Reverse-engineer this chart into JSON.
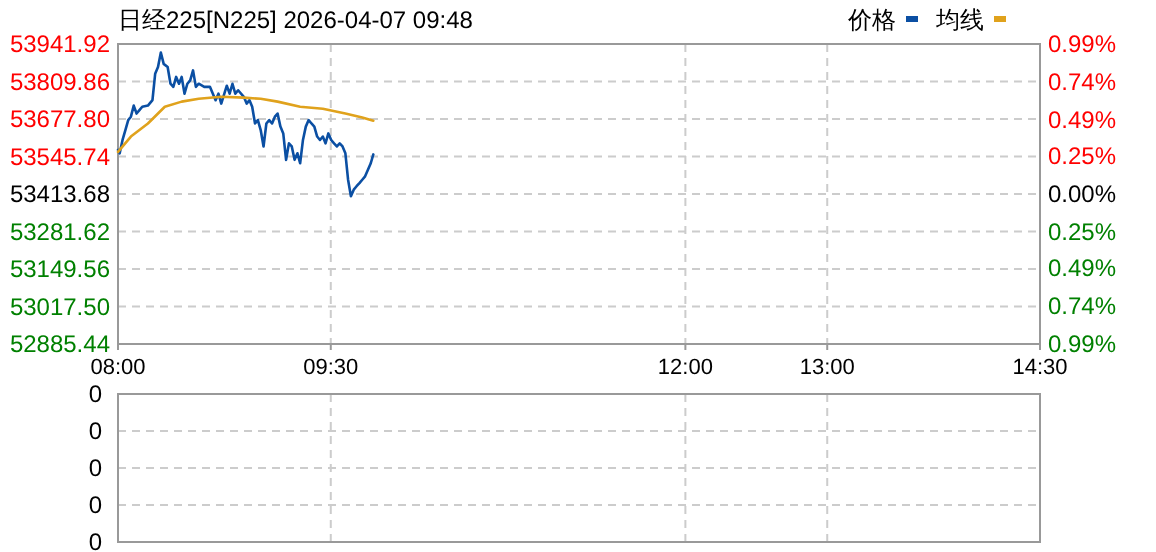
{
  "chart_data": [
    {
      "type": "line",
      "title": "日经225[N225] 2026-04-07 09:48",
      "legend": "top right",
      "grid": true,
      "xlim": [
        8,
        14.5
      ],
      "xticks": [
        {
          "value": 8,
          "label": "08:00"
        },
        {
          "value": 9.5,
          "label": "09:30"
        },
        {
          "value": 12,
          "label": "12:00"
        },
        {
          "value": 13,
          "label": "13:00"
        },
        {
          "value": 14.5,
          "label": "14:30"
        }
      ],
      "ylim": [
        52885.44,
        53941.92
      ],
      "yticks": [
        {
          "value": 52885.44,
          "label": "52885.44"
        },
        {
          "value": 53017.5,
          "label": "53017.50"
        },
        {
          "value": 53149.56,
          "label": "53149.56"
        },
        {
          "value": 53281.62,
          "label": "53281.62"
        },
        {
          "value": 53413.68,
          "label": "53413.68"
        },
        {
          "value": 53545.74,
          "label": "53545.74"
        },
        {
          "value": 53677.8,
          "label": "53677.80"
        },
        {
          "value": 53809.86,
          "label": "53809.86"
        },
        {
          "value": 53941.92,
          "label": "53941.92"
        }
      ],
      "y2lim": [
        -0.99,
        0.99
      ],
      "y2ticks": [
        {
          "value": -0.99,
          "label": "0.99%"
        },
        {
          "value": -0.74,
          "label": "0.74%"
        },
        {
          "value": -0.49,
          "label": "0.49%"
        },
        {
          "value": -0.25,
          "label": "0.25%"
        },
        {
          "value": 0,
          "label": "0.00%"
        },
        {
          "value": 0.25,
          "label": "0.25%"
        },
        {
          "value": 0.49,
          "label": "0.49%"
        },
        {
          "value": 0.74,
          "label": "0.74%"
        },
        {
          "value": 0.99,
          "label": "0.99%"
        }
      ],
      "series": [
        {
          "name": "价格",
          "color": "#0b4fa3",
          "x": [
            8.0,
            8.012,
            8.032,
            8.052,
            8.072,
            8.091,
            8.111,
            8.131,
            8.151,
            8.171,
            8.211,
            8.243,
            8.262,
            8.282,
            8.302,
            8.322,
            8.35,
            8.37,
            8.39,
            8.41,
            8.43,
            8.449,
            8.469,
            8.489,
            8.509,
            8.529,
            8.549,
            8.569,
            8.608,
            8.648,
            8.688,
            8.708,
            8.728,
            8.767,
            8.787,
            8.807,
            8.827,
            8.847,
            8.887,
            8.907,
            8.927,
            8.946,
            8.966,
            8.986,
            9.006,
            9.026,
            9.046,
            9.066,
            9.086,
            9.106,
            9.125,
            9.145,
            9.165,
            9.185,
            9.205,
            9.225,
            9.245,
            9.265,
            9.284,
            9.304,
            9.324,
            9.344,
            9.364,
            9.384,
            9.404,
            9.424,
            9.444,
            9.463,
            9.483,
            9.503,
            9.523,
            9.543,
            9.563,
            9.583,
            9.603,
            9.622,
            9.642,
            9.662,
            9.682,
            9.702,
            9.722,
            9.742,
            9.762,
            9.782,
            9.8
          ],
          "values": [
            53569,
            53557,
            53604,
            53639,
            53674,
            53686,
            53725,
            53697,
            53709,
            53721,
            53725,
            53744,
            53837,
            53861,
            53912,
            53872,
            53861,
            53802,
            53791,
            53826,
            53802,
            53826,
            53767,
            53802,
            53814,
            53849,
            53791,
            53802,
            53791,
            53791,
            53744,
            53767,
            53732,
            53795,
            53767,
            53802,
            53767,
            53779,
            53756,
            53732,
            53744,
            53721,
            53662,
            53674,
            53639,
            53581,
            53662,
            53674,
            53662,
            53686,
            53697,
            53651,
            53627,
            53534,
            53592,
            53581,
            53534,
            53557,
            53522,
            53604,
            53651,
            53674,
            53662,
            53651,
            53616,
            53604,
            53616,
            53592,
            53627,
            53604,
            53592,
            53581,
            53592,
            53581,
            53557,
            53464,
            53406,
            53429,
            53441,
            53452,
            53464,
            53476,
            53499,
            53522,
            53553
          ]
        },
        {
          "name": "均线",
          "color": "#e0a21c",
          "x": [
            8.0,
            8.091,
            8.211,
            8.33,
            8.449,
            8.569,
            8.728,
            8.887,
            9.006,
            9.125,
            9.284,
            9.444,
            9.603,
            9.722,
            9.8
          ],
          "values": [
            53562,
            53616,
            53662,
            53721,
            53739,
            53749,
            53756,
            53753,
            53749,
            53739,
            53721,
            53714,
            53697,
            53683,
            53672
          ]
        }
      ]
    },
    {
      "type": "other",
      "annotations": [
        "0",
        "0",
        "0",
        "0",
        "0"
      ]
    }
  ]
}
